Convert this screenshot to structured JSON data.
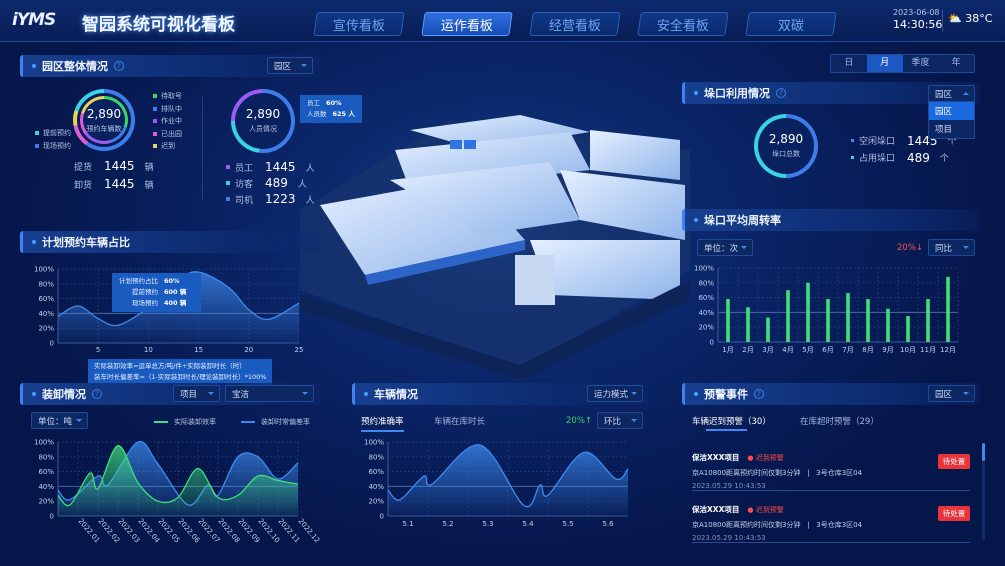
{
  "header": {
    "logo": "iYMS",
    "title": "智园系统可视化看板",
    "nav": [
      {
        "label": "宣传看板",
        "active": false
      },
      {
        "label": "运作看板",
        "active": true
      },
      {
        "label": "经营看板",
        "active": false
      },
      {
        "label": "安全看板",
        "active": false
      },
      {
        "label": "双碳",
        "active": false
      }
    ],
    "date": "2023-06-08",
    "time": "14:30:56",
    "weather_icon": "partly-cloudy-icon",
    "temperature": "38°C"
  },
  "period_tabs": [
    {
      "label": "日",
      "active": false
    },
    {
      "label": "月",
      "active": true
    },
    {
      "label": "季度",
      "active": false
    },
    {
      "label": "年",
      "active": false
    }
  ],
  "park_overview": {
    "title": "园区整体情况",
    "dropdown": "园区",
    "vehicle_ring": {
      "value": "2,890",
      "label": "预约车辆数"
    },
    "left_legend": [
      {
        "label": "提前预约",
        "color": "#39d3e6"
      },
      {
        "label": "现场预约",
        "color": "#3d7de8"
      }
    ],
    "right_legend": [
      {
        "label": "待取号",
        "color": "#37d667"
      },
      {
        "label": "排队中",
        "color": "#3d7de8"
      },
      {
        "label": "作业中",
        "color": "#9b5cf5"
      },
      {
        "label": "已出园",
        "color": "#e05cd8"
      },
      {
        "label": "迟到",
        "color": "#e8d35c"
      }
    ],
    "vehicle_stats": [
      {
        "label": "提货",
        "value": "1445",
        "unit": "辆"
      },
      {
        "label": "卸货",
        "value": "1445",
        "unit": "辆"
      }
    ],
    "people_ring": {
      "value": "2,890",
      "label": "人员情况"
    },
    "people_tooltip": [
      {
        "label": "员工",
        "value": "60%"
      },
      {
        "label": "人员数",
        "value": "625 人"
      }
    ],
    "people_stats": [
      {
        "label": "员工",
        "value": "1445",
        "unit": "人",
        "color": "#9b5cf5"
      },
      {
        "label": "访客",
        "value": "489",
        "unit": "人",
        "color": "#39d3e6"
      },
      {
        "label": "司机",
        "value": "1223",
        "unit": "人",
        "color": "#3d7de8"
      }
    ]
  },
  "plan_ratio": {
    "title": "计划预约车辆占比",
    "tooltip": [
      {
        "label": "计划预约占比",
        "value": "60%"
      },
      {
        "label": "提前预约",
        "value": "600 辆"
      },
      {
        "label": "现场预约",
        "value": "400 辆"
      }
    ],
    "formula": [
      "实际装卸效率=运单总方/吨/件÷实际装卸时长（时）",
      "装车时长偏差率=（1-实际装卸时长/理论装卸时长）*100%"
    ]
  },
  "loading": {
    "title": "装卸情况",
    "dropdown1": "项目",
    "dropdown2": "宝洁",
    "unit": "单位：吨"
  },
  "vehicle": {
    "title": "车辆情况",
    "dropdown": "运力模式",
    "tabs": [
      {
        "label": "预约准确率",
        "active": true
      },
      {
        "label": "车辆在库时长",
        "active": false
      }
    ],
    "change": "20%↑",
    "change_color": "#3ed56a",
    "compare": "环比"
  },
  "alerts": {
    "title": "预警事件",
    "dropdown": "园区",
    "tabs": [
      {
        "label": "车辆迟到预警（30）",
        "active": true
      },
      {
        "label": "在库超时预警（29）",
        "active": false
      }
    ],
    "items": [
      {
        "project": "保洁XXX项目",
        "warning": "迟到预警",
        "detail": "京A10800距离预约时间仅剩3分钟",
        "location": "3号仓库3区04",
        "time": "2023.05.29  10:43:53",
        "action": "待处置"
      },
      {
        "project": "保洁XXX项目",
        "warning": "迟到预警",
        "detail": "京A10800距离预约时间仅剩3分钟",
        "location": "3号仓库3区04",
        "time": "2023.05.29  10:43:53",
        "action": "待处置"
      }
    ]
  },
  "dock_usage": {
    "title": "垛口利用情况",
    "dropdown": "园区",
    "dropdown_options": [
      {
        "label": "园区",
        "selected": true
      },
      {
        "label": "项目",
        "selected": false
      }
    ],
    "ring": {
      "value": "2,890",
      "label": "垛口总数"
    },
    "stats": [
      {
        "label": "空闲垛口",
        "value": "1445",
        "unit": "个"
      },
      {
        "label": "占用垛口",
        "value": "489",
        "unit": "个"
      }
    ]
  },
  "dock_turnover": {
    "title": "垛口平均周转率",
    "unit": "单位：次",
    "change": "20%↓",
    "change_color": "#ff4d5a",
    "compare": "同比"
  },
  "chart_data": [
    {
      "id": "plan_ratio",
      "type": "area",
      "x": [
        1,
        3,
        5,
        7,
        10,
        13,
        15,
        18,
        20,
        22,
        25
      ],
      "values": [
        36,
        50,
        33,
        24,
        48,
        85,
        96,
        75,
        45,
        32,
        54
      ],
      "xticks": [
        "5",
        "10",
        "15",
        "20",
        "25"
      ],
      "yticks": [
        "0",
        "20%",
        "40%",
        "60%",
        "80%",
        "100%"
      ],
      "xlim": [
        1,
        25
      ],
      "ylim": [
        0,
        100
      ],
      "grid": true
    },
    {
      "id": "loading",
      "type": "area",
      "categories": [
        "2022.01",
        "2022.02",
        "2022.03",
        "2022.04",
        "2022.05",
        "2022.06",
        "2022.07",
        "2022.08",
        "2022.09",
        "2022.10",
        "2022.11",
        "2022.12"
      ],
      "yticks": [
        "0",
        "20%",
        "40%",
        "60%",
        "80%",
        "100%"
      ],
      "ylim": [
        0,
        100
      ],
      "grid": true,
      "legend": "top-right",
      "series": [
        {
          "name": "实际装卸效率",
          "color": "#3ee07a",
          "x": [
            0,
            0.6,
            1.6,
            2,
            3,
            4,
            5,
            6,
            7,
            8,
            9,
            10,
            11,
            12
          ],
          "values": [
            28,
            15,
            58,
            37,
            95,
            45,
            20,
            25,
            64,
            25,
            28,
            54,
            48,
            43
          ]
        },
        {
          "name": "装卸时常偏差率",
          "color": "#3d8bf0",
          "x": [
            0,
            0.6,
            2,
            2.5,
            4,
            5,
            6.5,
            7.5,
            8,
            9,
            10,
            11,
            12
          ],
          "values": [
            35,
            22,
            54,
            42,
            100,
            70,
            15,
            42,
            28,
            80,
            80,
            50,
            72
          ]
        }
      ]
    },
    {
      "id": "vehicle",
      "type": "area",
      "x": [
        5.05,
        5.08,
        5.14,
        5.16,
        5.28,
        5.39,
        5.43,
        5.45,
        5.54,
        5.62,
        5.65
      ],
      "values": [
        35,
        22,
        54,
        43,
        96,
        14,
        42,
        28,
        86,
        50,
        64
      ],
      "xticks": [
        "5.1",
        "5.2",
        "5.3",
        "5.4",
        "5.5",
        "5.6"
      ],
      "yticks": [
        "0",
        "20%",
        "40%",
        "60%",
        "80%",
        "100%"
      ],
      "xlim": [
        5.05,
        5.65
      ],
      "ylim": [
        0,
        100
      ],
      "grid": true
    },
    {
      "id": "turnover",
      "type": "bar",
      "categories": [
        "1月",
        "2月",
        "3月",
        "4月",
        "5月",
        "6月",
        "7月",
        "8月",
        "9月",
        "10月",
        "11月",
        "12月"
      ],
      "values": [
        58,
        47,
        33,
        70,
        80,
        58,
        66,
        58,
        45,
        35,
        58,
        88
      ],
      "yticks": [
        "0",
        "20%",
        "40%",
        "60%",
        "80%",
        "100%"
      ],
      "ylim": [
        0,
        100
      ],
      "grid": true,
      "color": "#3ee07a"
    }
  ]
}
